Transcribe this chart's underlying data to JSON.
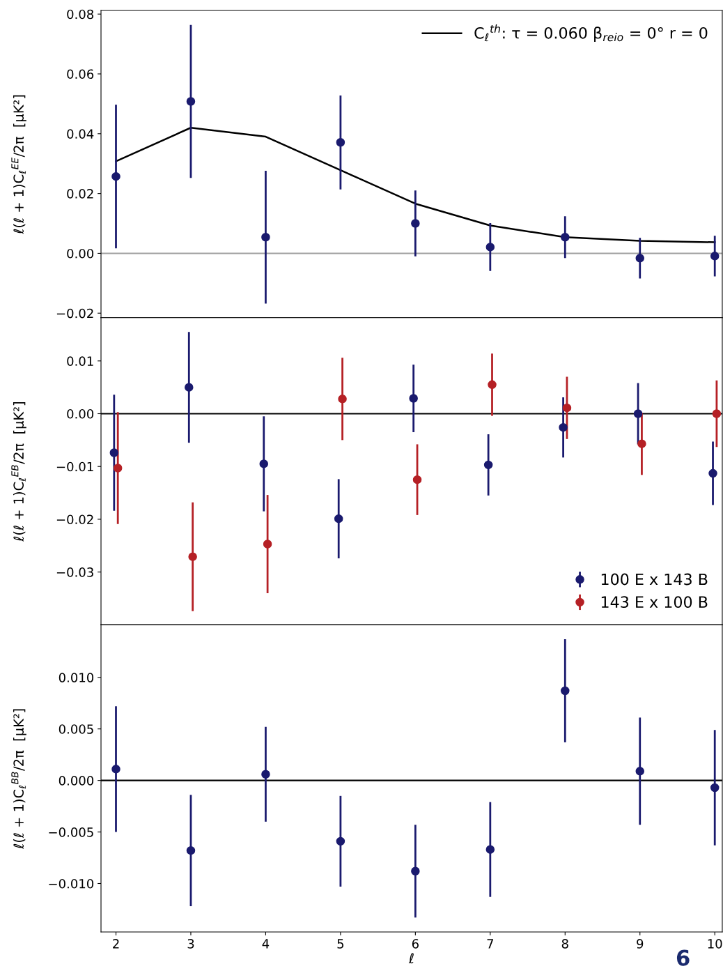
{
  "chart_data": [
    {
      "type": "scatter",
      "ylabel": "ℓ(ℓ + 1)C$_{ℓ}$$^{EE}$/2π  [μK²]",
      "xlim": [
        1.8,
        10.1
      ],
      "ylim": [
        -0.0215,
        0.0812
      ],
      "xticks": [
        2,
        3,
        4,
        5,
        6,
        7,
        8,
        9,
        10
      ],
      "yticks": [
        {
          "value": -0.02,
          "label": "−0.02"
        },
        {
          "value": 0,
          "label": "0.00"
        },
        {
          "value": 0.02,
          "label": "0.02"
        },
        {
          "value": 0.04,
          "label": "0.04"
        },
        {
          "value": 0.06,
          "label": "0.06"
        },
        {
          "value": 0.08,
          "label": "0.08"
        }
      ],
      "tick_labels": "y",
      "grid": false,
      "legend": "top right",
      "marker": "circle",
      "ref_lines": [
        {
          "axis": "y",
          "value": 0,
          "color": "#a0a0a0"
        }
      ],
      "series": [
        {
          "type": "line",
          "name": "C$_{ℓ}$$^{th}$: τ = 0.060 β$_{reio}$ = 0° r = 0",
          "color": "#000000",
          "marker": "none",
          "line_style": "solid",
          "x": [
            2,
            3,
            4,
            5,
            6,
            7,
            8,
            9,
            10
          ],
          "values": [
            0.0308,
            0.042,
            0.039,
            0.0278,
            0.0166,
            0.0093,
            0.0054,
            0.0042,
            0.0037
          ]
        },
        {
          "color": "#1a1a6e",
          "x": [
            2,
            3,
            4,
            5,
            6,
            7,
            8,
            9,
            10
          ],
          "values": [
            0.0257,
            0.0508,
            0.0054,
            0.0371,
            0.01,
            0.0021,
            0.0054,
            -0.0016,
            -0.0009
          ],
          "errors": [
            0.024,
            0.0256,
            0.0222,
            0.0157,
            0.011,
            0.008,
            0.007,
            0.0068,
            0.0068
          ]
        }
      ]
    },
    {
      "type": "scatter",
      "ylabel": "ℓ(ℓ + 1)C$_{ℓ}$$^{EB}$/2π  [μK²]",
      "xlim": [
        1.8,
        10.1
      ],
      "ylim": [
        -0.04,
        0.0182
      ],
      "xticks": [
        2,
        3,
        4,
        5,
        6,
        7,
        8,
        9,
        10
      ],
      "yticks": [
        {
          "value": -0.03,
          "label": "−0.03"
        },
        {
          "value": -0.02,
          "label": "−0.02"
        },
        {
          "value": -0.01,
          "label": "−0.01"
        },
        {
          "value": 0,
          "label": "0.00"
        },
        {
          "value": 0.01,
          "label": "0.01"
        }
      ],
      "tick_labels": "y",
      "grid": false,
      "legend": "bottom right",
      "marker": "circle",
      "ref_lines": [
        {
          "axis": "y",
          "value": 0,
          "color": "#000000"
        }
      ],
      "series": [
        {
          "name": "100 E x 143 B",
          "color": "#1a1a6e",
          "x": [
            1.975,
            2.975,
            3.975,
            4.975,
            5.975,
            6.975,
            7.975,
            8.975,
            9.975
          ],
          "values": [
            -0.0074,
            0.005,
            -0.0095,
            -0.0199,
            0.0029,
            -0.0097,
            -0.0026,
            0.0,
            -0.0113
          ],
          "errors": [
            0.011,
            0.0105,
            0.009,
            0.0075,
            0.0064,
            0.0058,
            0.0057,
            0.0058,
            0.006
          ]
        },
        {
          "name": "143 E x 100 B",
          "color": "#b52025",
          "x": [
            2.025,
            3.025,
            4.025,
            5.025,
            6.025,
            7.025,
            8.025,
            9.025,
            10.025
          ],
          "values": [
            -0.0103,
            -0.0271,
            -0.0247,
            0.0028,
            -0.0125,
            0.0055,
            0.0011,
            -0.0057,
            0.0
          ],
          "errors": [
            0.0106,
            0.0103,
            0.0093,
            0.0078,
            0.0067,
            0.0059,
            0.0059,
            0.0059,
            0.0063
          ]
        }
      ]
    },
    {
      "type": "scatter",
      "ylabel": "ℓ(ℓ + 1)C$_{ℓ}$$^{BB}$/2π  [μK²]",
      "xlabel": "ℓ",
      "xlim": [
        1.8,
        10.1
      ],
      "ylim": [
        -0.0147,
        0.0151
      ],
      "xticks": [
        2,
        3,
        4,
        5,
        6,
        7,
        8,
        9,
        10
      ],
      "yticks": [
        {
          "value": -0.01,
          "label": "−0.010"
        },
        {
          "value": -0.005,
          "label": "−0.005"
        },
        {
          "value": 0,
          "label": "0.000"
        },
        {
          "value": 0.005,
          "label": "0.005"
        },
        {
          "value": 0.01,
          "label": "0.010"
        }
      ],
      "grid": false,
      "marker": "circle",
      "ref_lines": [
        {
          "axis": "y",
          "value": 0,
          "color": "#000000"
        }
      ],
      "annotations": [
        "6"
      ],
      "series": [
        {
          "color": "#1a1a6e",
          "x": [
            2,
            3,
            4,
            5,
            6,
            7,
            8,
            9,
            10
          ],
          "values": [
            0.0011,
            -0.0068,
            0.0006,
            -0.0059,
            -0.0088,
            -0.0067,
            0.0087,
            0.0009,
            -0.0007
          ],
          "errors": [
            0.0061,
            0.0054,
            0.0046,
            0.0044,
            0.0045,
            0.0046,
            0.005,
            0.0052,
            0.0056
          ]
        }
      ]
    }
  ]
}
